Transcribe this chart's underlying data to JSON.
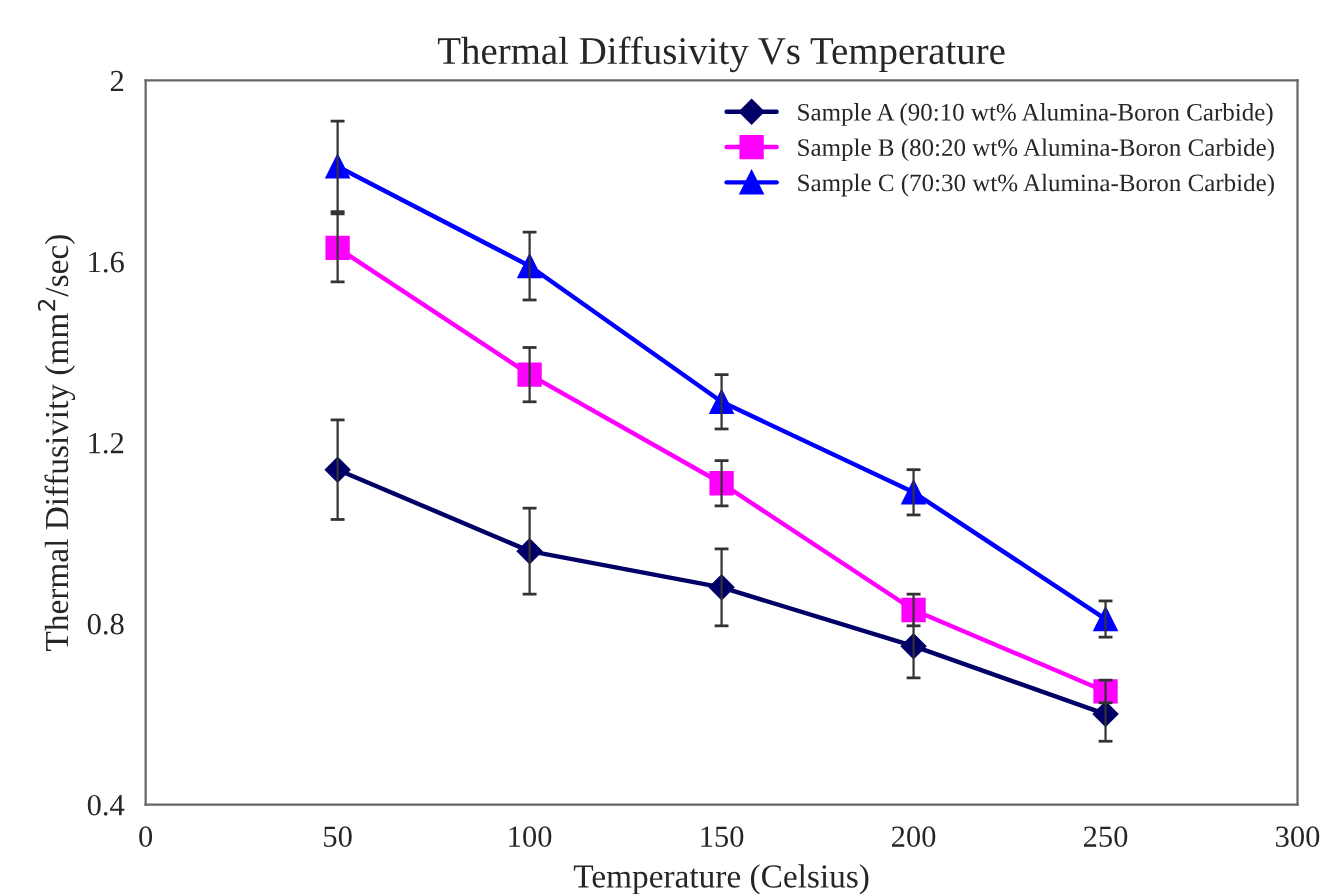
{
  "chart_data": {
    "type": "line",
    "title": "Thermal Diffusivity Vs Temperature",
    "xlabel": "Temperature (Celsius)",
    "ylabel": "Thermal Diffusivity (mm$^{2}$/sec)",
    "x": [
      50,
      100,
      150,
      200,
      250
    ],
    "series": [
      {
        "name": "Sample A (90:10 wt% Alumina-Boron Carbide)",
        "color": "#000066",
        "marker": "diamond",
        "values": [
          1.14,
          0.96,
          0.88,
          0.75,
          0.6
        ],
        "errors": [
          0.11,
          0.095,
          0.085,
          0.07,
          0.06
        ]
      },
      {
        "name": "Sample B (80:20 wt% Alumina-Boron Carbide)",
        "color": "#ff00ff",
        "marker": "square",
        "values": [
          1.63,
          1.35,
          1.11,
          0.83,
          0.65
        ],
        "errors": [
          0.075,
          0.06,
          0.05,
          0.035,
          0.025
        ]
      },
      {
        "name": "Sample C (70:30 wt% Alumina-Boron Carbide)",
        "color": "#0000ff",
        "marker": "triangle",
        "values": [
          1.81,
          1.59,
          1.29,
          1.09,
          0.81
        ],
        "errors": [
          0.1,
          0.075,
          0.06,
          0.05,
          0.04
        ]
      }
    ],
    "xlim": [
      0,
      300
    ],
    "xticks": [
      0,
      50,
      100,
      150,
      200,
      250,
      300
    ],
    "ylim": [
      0.4,
      2
    ],
    "yticks": [
      0.4,
      0.8,
      1.2,
      1.6,
      2
    ],
    "grid": false,
    "legend": "top right",
    "line_style": "solid"
  }
}
